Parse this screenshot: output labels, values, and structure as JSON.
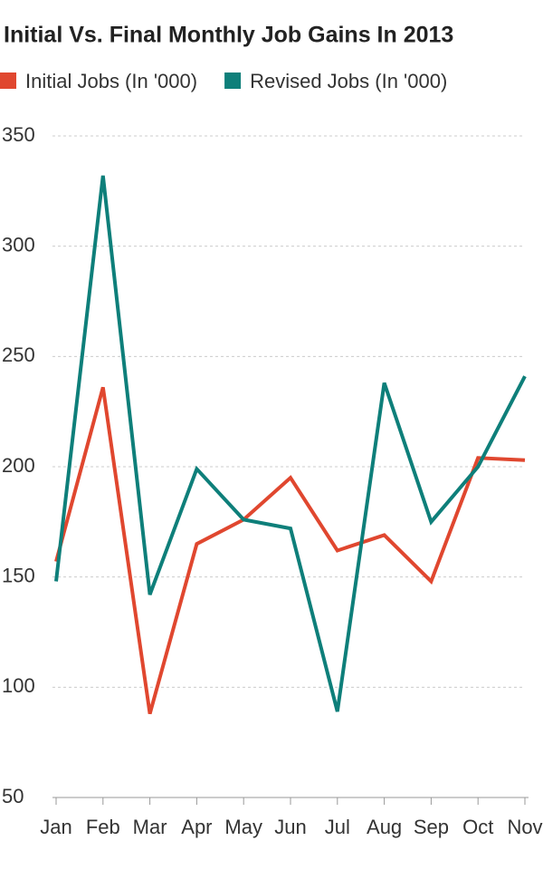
{
  "chart_data": {
    "type": "line",
    "title": "Initial Vs. Final Monthly Job Gains In 2013",
    "categories": [
      "Jan",
      "Feb",
      "Mar",
      "Apr",
      "May",
      "Jun",
      "Jul",
      "Aug",
      "Sep",
      "Oct",
      "Nov"
    ],
    "series": [
      {
        "name": "Initial Jobs (In '000)",
        "color": "#e0472f",
        "values": [
          157,
          236,
          88,
          165,
          176,
          195,
          162,
          169,
          148,
          204,
          203
        ]
      },
      {
        "name": "Revised Jobs (In '000)",
        "color": "#0e7f7a",
        "values": [
          148,
          332,
          142,
          199,
          176,
          172,
          89,
          238,
          175,
          200,
          241
        ]
      }
    ],
    "ylim": [
      50,
      350
    ],
    "yticks": [
      50,
      100,
      150,
      200,
      250,
      300,
      350
    ],
    "grid": true
  }
}
